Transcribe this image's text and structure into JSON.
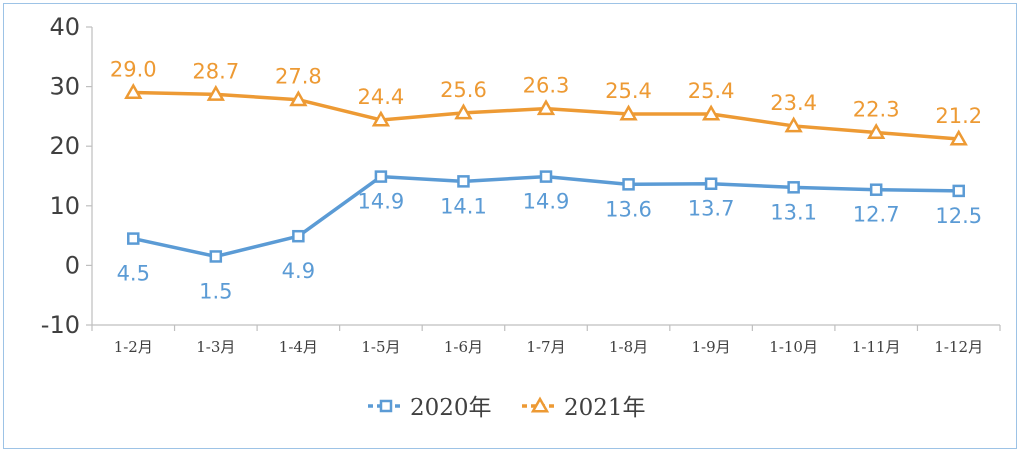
{
  "chart_data": {
    "type": "line",
    "title": "",
    "xlabel": "",
    "ylabel": "",
    "ylim": [
      -10,
      40
    ],
    "yticks": [
      40,
      30,
      20,
      10,
      0,
      -10
    ],
    "categories": [
      "1-2月",
      "1-3月",
      "1-4月",
      "1-5月",
      "1-6月",
      "1-7月",
      "1-8月",
      "1-9月",
      "1-10月",
      "1-11月",
      "1-12月"
    ],
    "series": [
      {
        "name": "2020年",
        "color": "#5b9bd5",
        "marker": "square",
        "values": [
          4.5,
          1.5,
          4.9,
          14.9,
          14.1,
          14.9,
          13.6,
          13.7,
          13.1,
          12.7,
          12.5
        ],
        "labels": [
          "4.5",
          "1.5",
          "4.9",
          "14.9",
          "14.1",
          "14.9",
          "13.6",
          "13.7",
          "13.1",
          "12.7",
          "12.5"
        ]
      },
      {
        "name": "2021年",
        "color": "#ed9a34",
        "marker": "triangle",
        "values": [
          29.0,
          28.7,
          27.8,
          24.4,
          25.6,
          26.3,
          25.4,
          25.4,
          23.4,
          22.3,
          21.2
        ],
        "labels": [
          "29.0",
          "28.7",
          "27.8",
          "24.4",
          "25.6",
          "26.3",
          "25.4",
          "25.4",
          "23.4",
          "22.3",
          "21.2"
        ]
      }
    ],
    "legend_position": "bottom-center",
    "grid": false
  }
}
